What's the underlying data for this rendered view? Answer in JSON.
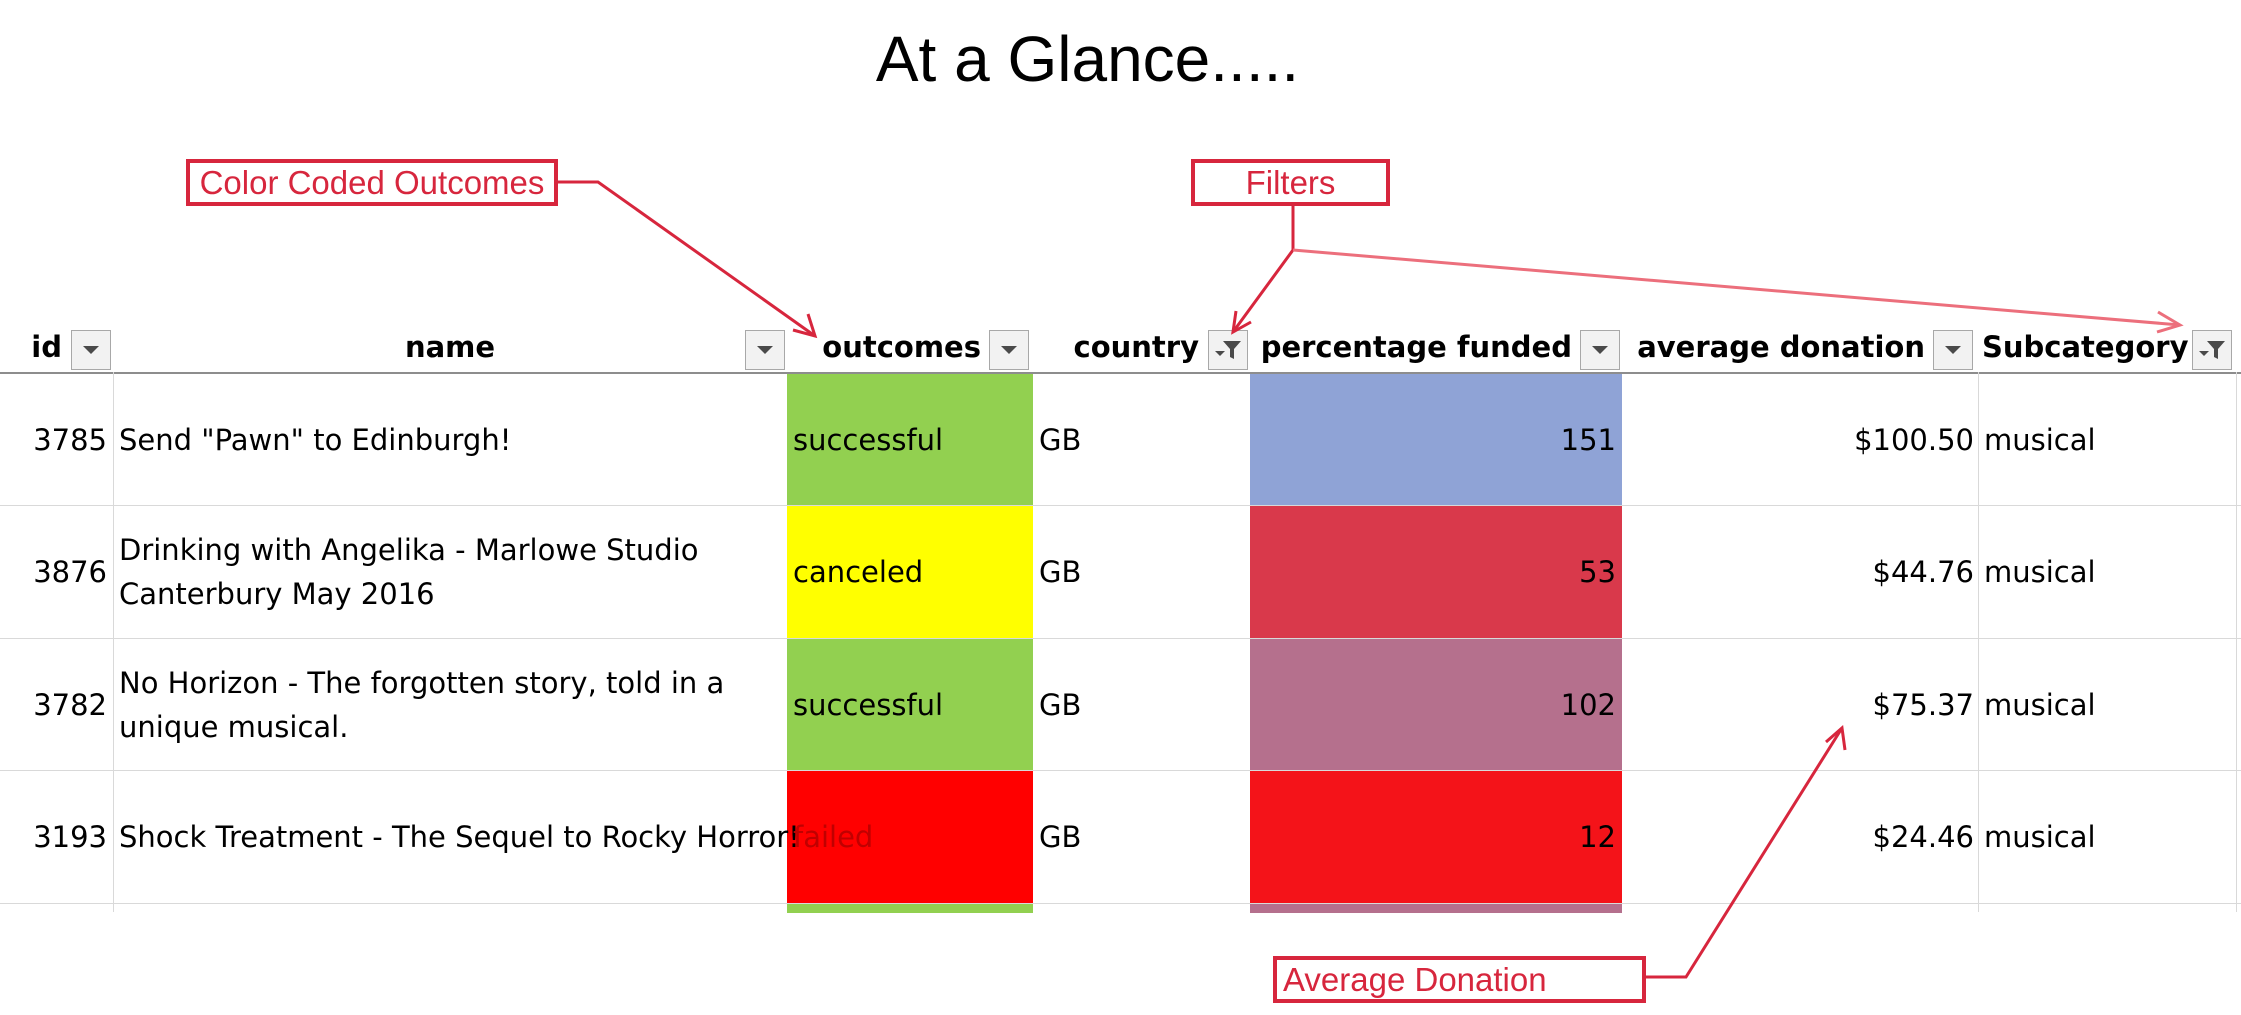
{
  "page": {
    "title": "At a Glance....."
  },
  "colors": {
    "successful": "#92d050",
    "canceled": "#ffff00",
    "failed": "#ff0000",
    "annotation": "#d7263d"
  },
  "table": {
    "headers": {
      "id": "id",
      "name": "name",
      "outcomes": "outcomes",
      "country": "country",
      "percentage_funded": "percentage funded",
      "average_donation": "average donation",
      "subcategory": "Subcategory"
    },
    "filters": {
      "id": "dropdown-icon",
      "name": "dropdown-icon",
      "outcomes": "dropdown-icon",
      "country": "filter-active-icon",
      "percentage_funded": "dropdown-icon",
      "average_donation": "dropdown-icon",
      "subcategory": "filter-active-icon"
    },
    "rows": [
      {
        "id": "3785",
        "name": "Send \"Pawn\" to Edinburgh!",
        "name_line2": "",
        "outcome": "successful",
        "outcome_color": "#92d050",
        "country": "GB",
        "percentage_funded": "151",
        "pf_color": "#8fa3d6",
        "average_donation": "$100.50",
        "subcategory": "musical"
      },
      {
        "id": "3876",
        "name": "Drinking with Angelika - Marlowe Studio",
        "name_line2": "Canterbury May 2016",
        "outcome": "canceled",
        "outcome_color": "#ffff00",
        "country": "GB",
        "percentage_funded": "53",
        "pf_color": "#d9394b",
        "average_donation": "$44.76",
        "subcategory": "musical"
      },
      {
        "id": "3782",
        "name": "No Horizon - The forgotten story, told in a",
        "name_line2": "unique musical.",
        "outcome": "successful",
        "outcome_color": "#92d050",
        "country": "GB",
        "percentage_funded": "102",
        "pf_color": "#b5708d",
        "average_donation": "$75.37",
        "subcategory": "musical"
      },
      {
        "id": "3193",
        "name": "Shock Treatment - The Sequel to Rocky Horror!",
        "name_line2": "",
        "outcome": "failed",
        "outcome_color": "#ff0000",
        "country": "GB",
        "percentage_funded": "12",
        "pf_color": "#f41319",
        "average_donation": "$24.46",
        "subcategory": "musical"
      }
    ]
  },
  "annotations": {
    "color_coded": "Color Coded Outcomes",
    "filters": "Filters",
    "average_donation": "Average Donation"
  }
}
